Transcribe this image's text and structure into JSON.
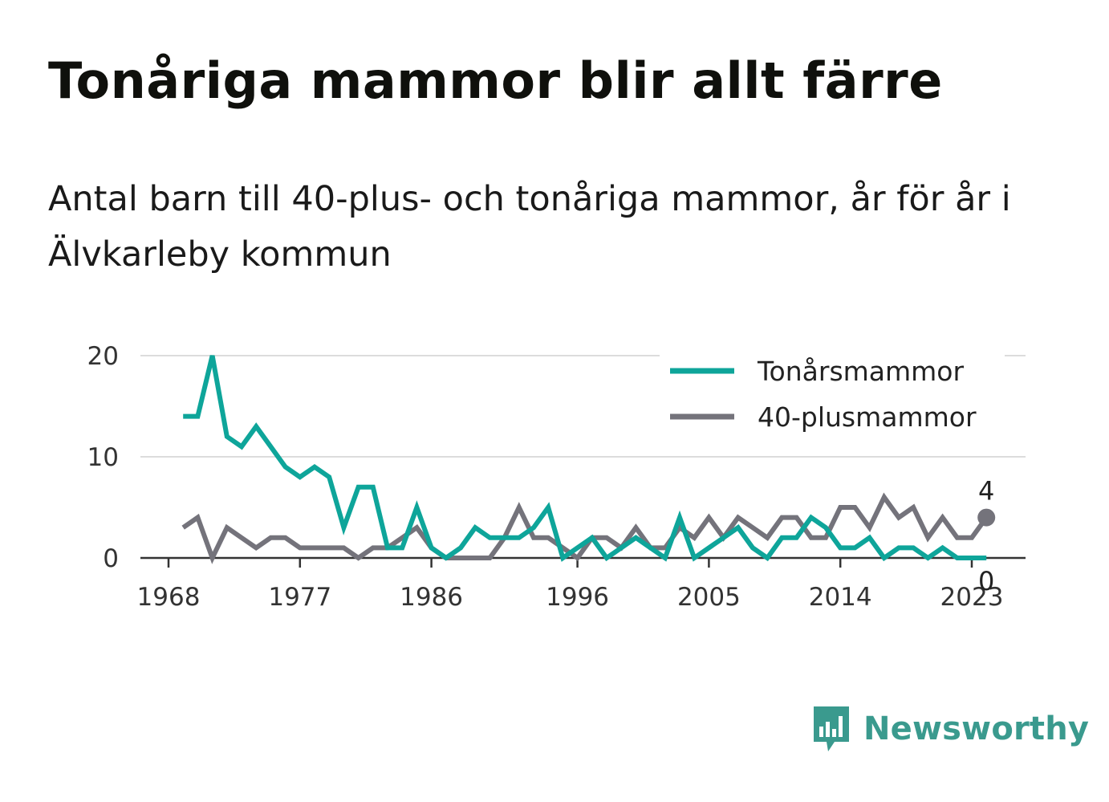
{
  "title": "Tonåriga mammor blir allt färre",
  "subtitle": "Antal barn till 40-plus- och tonåriga mammor, år för år i Älvkarleby kommun",
  "brand": {
    "name": "Newsworthy",
    "icon": "newsworthy-logo-icon",
    "color": "#3a9a8e"
  },
  "chart_data": {
    "type": "line",
    "x": [
      1969,
      1970,
      1971,
      1972,
      1973,
      1974,
      1975,
      1976,
      1977,
      1978,
      1979,
      1980,
      1981,
      1982,
      1983,
      1984,
      1985,
      1986,
      1987,
      1988,
      1989,
      1990,
      1991,
      1992,
      1993,
      1994,
      1995,
      1996,
      1997,
      1998,
      1999,
      2000,
      2001,
      2002,
      2003,
      2004,
      2005,
      2006,
      2007,
      2008,
      2009,
      2010,
      2011,
      2012,
      2013,
      2014,
      2015,
      2016,
      2017,
      2018,
      2019,
      2020,
      2021,
      2022,
      2023,
      2024
    ],
    "series": [
      {
        "name": "Tonårsmammor",
        "color": "#0ea59a",
        "values": [
          14,
          14,
          20,
          12,
          11,
          13,
          11,
          9,
          8,
          9,
          8,
          3,
          7,
          7,
          1,
          1,
          5,
          1,
          0,
          1,
          3,
          2,
          2,
          2,
          3,
          5,
          0,
          1,
          2,
          0,
          1,
          2,
          1,
          0,
          4,
          0,
          1,
          2,
          3,
          1,
          0,
          2,
          2,
          4,
          3,
          1,
          1,
          2,
          0,
          1,
          1,
          0,
          1,
          0,
          0,
          0
        ]
      },
      {
        "name": "40-plusmammor",
        "color": "#74737b",
        "values": [
          3,
          4,
          0,
          3,
          2,
          1,
          2,
          2,
          1,
          1,
          1,
          1,
          0,
          1,
          1,
          2,
          3,
          1,
          0,
          0,
          0,
          0,
          2,
          5,
          2,
          2,
          1,
          0,
          2,
          2,
          1,
          3,
          1,
          1,
          3,
          2,
          4,
          2,
          4,
          3,
          2,
          4,
          4,
          2,
          2,
          5,
          5,
          3,
          6,
          4,
          5,
          2,
          4,
          2,
          2,
          4
        ]
      }
    ],
    "x_ticks": [
      "1968",
      "1977",
      "1986",
      "1996",
      "2005",
      "2014",
      "2023"
    ],
    "y_ticks": [
      "0",
      "10",
      "20"
    ],
    "ylim": [
      0,
      20
    ],
    "xlim": [
      1968,
      2024
    ],
    "grid": "horizontal",
    "legend": "top-right",
    "end_labels": {
      "40-plusmammor": "4",
      "Tonårsmammor": "0"
    }
  }
}
